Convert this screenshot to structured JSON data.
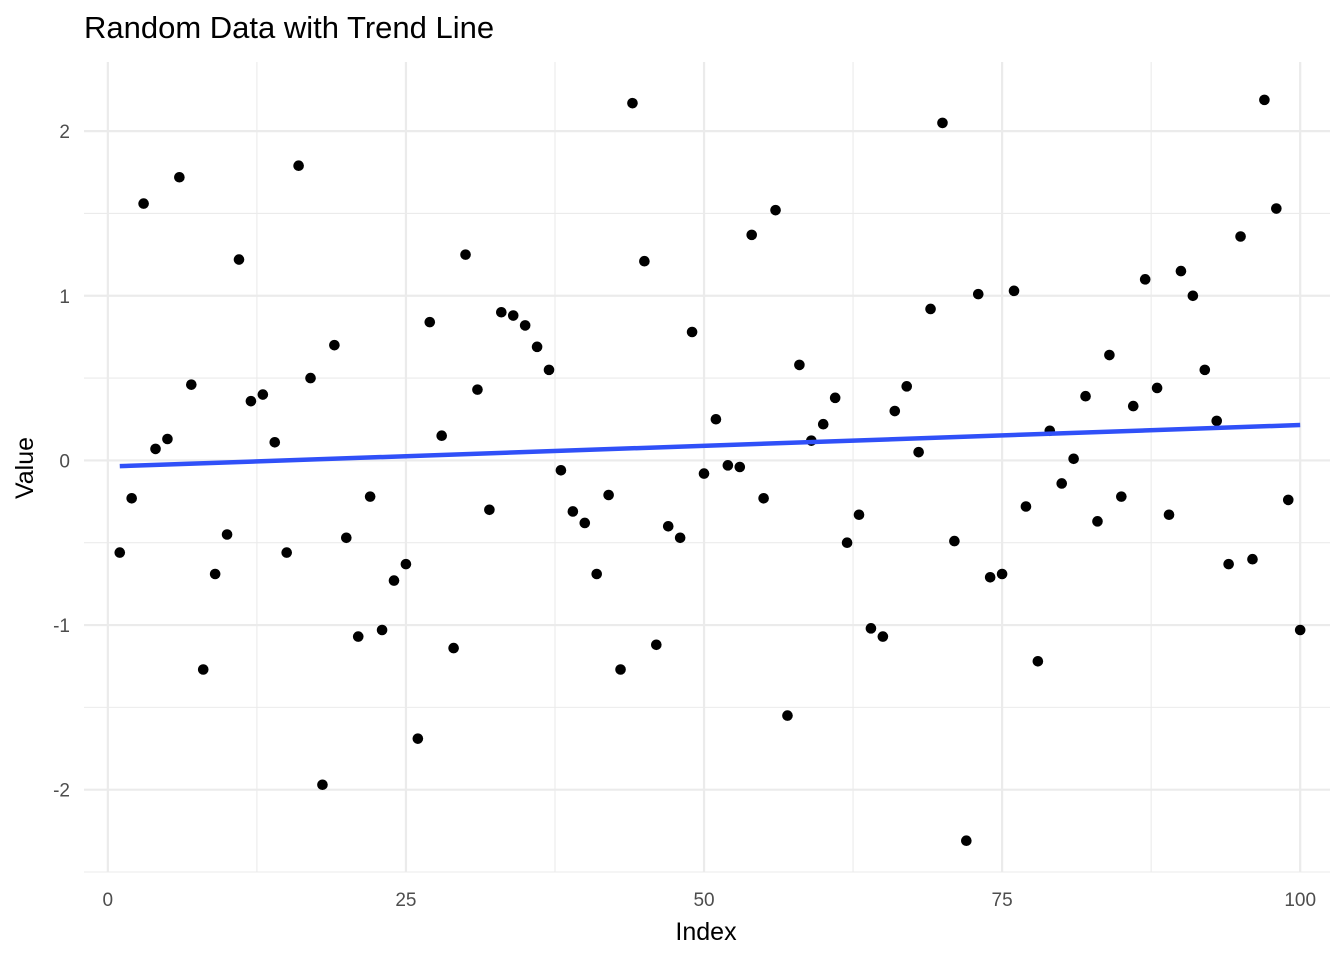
{
  "chart_data": {
    "type": "scatter",
    "title": "Random Data with Trend Line",
    "xlabel": "Index",
    "ylabel": "Value",
    "xlim": [
      -2,
      102.5
    ],
    "ylim": [
      -2.5,
      2.42
    ],
    "x_ticks": [
      0,
      25,
      50,
      75,
      100
    ],
    "x_tick_labels": [
      "0",
      "25",
      "50",
      "75",
      "100"
    ],
    "y_ticks": [
      -2,
      -1,
      0,
      1,
      2
    ],
    "y_tick_labels": [
      "-2",
      "-1",
      "0",
      "1",
      "2"
    ],
    "grid": true,
    "point_color": "#000000",
    "trend_color": "#3050f8",
    "gridline_color": "#ebebeb",
    "series": [
      {
        "x": [
          1,
          2,
          3,
          4,
          5,
          6,
          7,
          8,
          9,
          10,
          11,
          12,
          13,
          14,
          15,
          16,
          17,
          18,
          19,
          20,
          21,
          22,
          23,
          24,
          25,
          26,
          27,
          28,
          29,
          30,
          31,
          32,
          33,
          34,
          35,
          36,
          37,
          38,
          39,
          40,
          41,
          42,
          43,
          44,
          45,
          46,
          47,
          48,
          49,
          50,
          51,
          52,
          53,
          54,
          55,
          56,
          57,
          58,
          59,
          60,
          61,
          62,
          63,
          64,
          65,
          66,
          67,
          68,
          69,
          70,
          71,
          72,
          73,
          74,
          75,
          76,
          77,
          78,
          79,
          80,
          81,
          82,
          83,
          84,
          85,
          86,
          87,
          88,
          89,
          90,
          91,
          92,
          93,
          94,
          95,
          96,
          97,
          98,
          99,
          100
        ],
        "y": [
          -0.56,
          -0.23,
          1.56,
          0.07,
          0.13,
          1.72,
          0.46,
          -1.27,
          -0.69,
          -0.45,
          1.22,
          0.36,
          0.4,
          0.11,
          -0.56,
          1.79,
          0.5,
          -1.97,
          0.7,
          -0.47,
          -1.07,
          -0.22,
          -1.03,
          -0.73,
          -0.63,
          -1.69,
          0.84,
          0.15,
          -1.14,
          1.25,
          0.43,
          -0.3,
          0.9,
          0.88,
          0.82,
          0.69,
          0.55,
          -0.06,
          -0.31,
          -0.38,
          -0.69,
          -0.21,
          -1.27,
          2.17,
          1.21,
          -1.12,
          -0.4,
          -0.47,
          0.78,
          -0.08,
          0.25,
          -0.03,
          -0.04,
          1.37,
          -0.23,
          1.52,
          -1.55,
          0.58,
          0.12,
          0.22,
          0.38,
          -0.5,
          -0.33,
          -1.02,
          -1.07,
          0.3,
          0.45,
          0.05,
          0.92,
          2.05,
          -0.49,
          -2.31,
          1.01,
          -0.71,
          -0.69,
          1.03,
          -0.28,
          -1.22,
          0.18,
          -0.14,
          0.01,
          0.39,
          -0.37,
          0.64,
          -0.22,
          0.33,
          1.1,
          0.44,
          -0.33,
          1.15,
          1.0,
          0.55,
          0.24,
          -0.63,
          1.36,
          -0.6,
          2.19,
          1.53,
          -0.24,
          -1.03
        ]
      }
    ],
    "trend": {
      "x": [
        1,
        100
      ],
      "y": [
        -0.035,
        0.215
      ]
    }
  }
}
